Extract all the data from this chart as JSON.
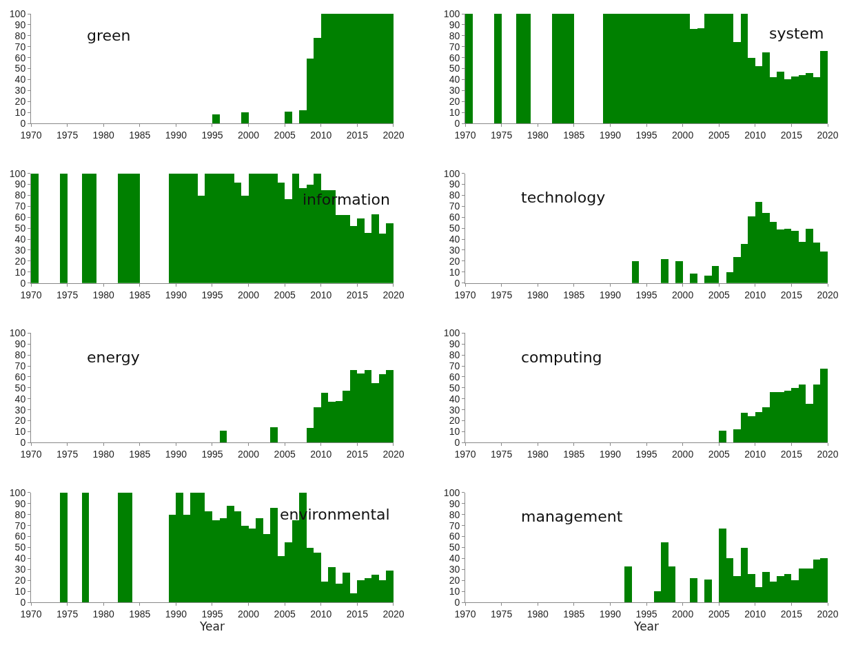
{
  "chart_data": [
    {
      "type": "histogram",
      "annotations": [
        "green"
      ],
      "color": "#008000",
      "xlim": [
        1970,
        2020
      ],
      "ylim": [
        0,
        100
      ],
      "xticks": [
        1970,
        1975,
        1980,
        1985,
        1990,
        1995,
        2000,
        2005,
        2010,
        2015,
        2020
      ],
      "yticks": [
        0,
        10,
        20,
        30,
        40,
        50,
        60,
        70,
        80,
        90,
        100
      ],
      "bins": [
        1970,
        1971,
        1972,
        1973,
        1974,
        1975,
        1976,
        1977,
        1978,
        1979,
        1980,
        1981,
        1982,
        1983,
        1984,
        1985,
        1986,
        1987,
        1988,
        1989,
        1990,
        1991,
        1992,
        1993,
        1994,
        1995,
        1996,
        1997,
        1998,
        1999,
        2000,
        2001,
        2002,
        2003,
        2004,
        2005,
        2006,
        2007,
        2008,
        2009,
        2010,
        2011,
        2012,
        2013,
        2014,
        2015,
        2016,
        2017,
        2018,
        2019,
        2020
      ],
      "values": [
        0,
        0,
        0,
        0,
        0,
        0,
        0,
        0,
        0,
        0,
        0,
        0,
        0,
        0,
        0,
        0,
        0,
        0,
        0,
        0,
        0,
        0,
        0,
        0,
        0,
        8,
        0,
        0,
        0,
        10,
        0,
        0,
        0,
        0,
        0,
        11,
        0,
        12,
        59,
        78,
        100,
        100,
        100,
        100,
        100,
        100,
        100,
        100,
        100,
        100
      ]
    },
    {
      "type": "histogram",
      "annotations": [
        "system"
      ],
      "color": "#008000",
      "xlim": [
        1970,
        2020
      ],
      "ylim": [
        0,
        100
      ],
      "xticks": [
        1970,
        1975,
        1980,
        1985,
        1990,
        1995,
        2000,
        2005,
        2010,
        2015,
        2020
      ],
      "yticks": [
        0,
        10,
        20,
        30,
        40,
        50,
        60,
        70,
        80,
        90,
        100
      ],
      "bins": [
        1970,
        1971,
        1972,
        1973,
        1974,
        1975,
        1976,
        1977,
        1978,
        1979,
        1980,
        1981,
        1982,
        1983,
        1984,
        1985,
        1986,
        1987,
        1988,
        1989,
        1990,
        1991,
        1992,
        1993,
        1994,
        1995,
        1996,
        1997,
        1998,
        1999,
        2000,
        2001,
        2002,
        2003,
        2004,
        2005,
        2006,
        2007,
        2008,
        2009,
        2010,
        2011,
        2012,
        2013,
        2014,
        2015,
        2016,
        2017,
        2018,
        2019,
        2020
      ],
      "values": [
        100,
        0,
        0,
        0,
        100,
        0,
        0,
        100,
        100,
        0,
        0,
        0,
        100,
        100,
        100,
        0,
        0,
        0,
        0,
        100,
        100,
        100,
        100,
        100,
        100,
        100,
        100,
        100,
        100,
        100,
        100,
        86,
        87,
        100,
        100,
        100,
        100,
        74,
        100,
        60,
        52,
        65,
        42,
        47,
        40,
        43,
        44,
        46,
        42,
        66
      ]
    },
    {
      "type": "histogram",
      "annotations": [
        "information"
      ],
      "color": "#008000",
      "xlim": [
        1970,
        2020
      ],
      "ylim": [
        0,
        100
      ],
      "xticks": [
        1970,
        1975,
        1980,
        1985,
        1990,
        1995,
        2000,
        2005,
        2010,
        2015,
        2020
      ],
      "yticks": [
        0,
        10,
        20,
        30,
        40,
        50,
        60,
        70,
        80,
        90,
        100
      ],
      "bins": [
        1970,
        1971,
        1972,
        1973,
        1974,
        1975,
        1976,
        1977,
        1978,
        1979,
        1980,
        1981,
        1982,
        1983,
        1984,
        1985,
        1986,
        1987,
        1988,
        1989,
        1990,
        1991,
        1992,
        1993,
        1994,
        1995,
        1996,
        1997,
        1998,
        1999,
        2000,
        2001,
        2002,
        2003,
        2004,
        2005,
        2006,
        2007,
        2008,
        2009,
        2010,
        2011,
        2012,
        2013,
        2014,
        2015,
        2016,
        2017,
        2018,
        2019,
        2020
      ],
      "values": [
        100,
        0,
        0,
        0,
        100,
        0,
        0,
        100,
        100,
        0,
        0,
        0,
        100,
        100,
        100,
        0,
        0,
        0,
        0,
        100,
        100,
        100,
        100,
        80,
        100,
        100,
        100,
        100,
        92,
        80,
        100,
        100,
        100,
        100,
        92,
        77,
        100,
        87,
        90,
        100,
        85,
        85,
        62,
        62,
        52,
        59,
        46,
        63,
        45,
        55
      ]
    },
    {
      "type": "histogram",
      "annotations": [
        "technology"
      ],
      "color": "#008000",
      "xlim": [
        1970,
        2020
      ],
      "ylim": [
        0,
        100
      ],
      "xticks": [
        1970,
        1975,
        1980,
        1985,
        1990,
        1995,
        2000,
        2005,
        2010,
        2015,
        2020
      ],
      "yticks": [
        0,
        10,
        20,
        30,
        40,
        50,
        60,
        70,
        80,
        90,
        100
      ],
      "bins": [
        1970,
        1971,
        1972,
        1973,
        1974,
        1975,
        1976,
        1977,
        1978,
        1979,
        1980,
        1981,
        1982,
        1983,
        1984,
        1985,
        1986,
        1987,
        1988,
        1989,
        1990,
        1991,
        1992,
        1993,
        1994,
        1995,
        1996,
        1997,
        1998,
        1999,
        2000,
        2001,
        2002,
        2003,
        2004,
        2005,
        2006,
        2007,
        2008,
        2009,
        2010,
        2011,
        2012,
        2013,
        2014,
        2015,
        2016,
        2017,
        2018,
        2019,
        2020
      ],
      "values": [
        0,
        0,
        0,
        0,
        0,
        0,
        0,
        0,
        0,
        0,
        0,
        0,
        0,
        0,
        0,
        0,
        0,
        0,
        0,
        0,
        0,
        0,
        0,
        20,
        0,
        0,
        0,
        22,
        0,
        20,
        0,
        9,
        0,
        7,
        16,
        0,
        10,
        24,
        36,
        61,
        74,
        64,
        56,
        49,
        50,
        48,
        38,
        50,
        37,
        29
      ]
    },
    {
      "type": "histogram",
      "annotations": [
        "energy"
      ],
      "color": "#008000",
      "xlim": [
        1970,
        2020
      ],
      "ylim": [
        0,
        100
      ],
      "xticks": [
        1970,
        1975,
        1980,
        1985,
        1990,
        1995,
        2000,
        2005,
        2010,
        2015,
        2020
      ],
      "yticks": [
        0,
        10,
        20,
        30,
        40,
        50,
        60,
        70,
        80,
        90,
        100
      ],
      "bins": [
        1970,
        1971,
        1972,
        1973,
        1974,
        1975,
        1976,
        1977,
        1978,
        1979,
        1980,
        1981,
        1982,
        1983,
        1984,
        1985,
        1986,
        1987,
        1988,
        1989,
        1990,
        1991,
        1992,
        1993,
        1994,
        1995,
        1996,
        1997,
        1998,
        1999,
        2000,
        2001,
        2002,
        2003,
        2004,
        2005,
        2006,
        2007,
        2008,
        2009,
        2010,
        2011,
        2012,
        2013,
        2014,
        2015,
        2016,
        2017,
        2018,
        2019,
        2020
      ],
      "values": [
        0,
        0,
        0,
        0,
        0,
        0,
        0,
        0,
        0,
        0,
        0,
        0,
        0,
        0,
        0,
        0,
        0,
        0,
        0,
        0,
        0,
        0,
        0,
        0,
        0,
        0,
        11,
        0,
        0,
        0,
        0,
        0,
        0,
        14,
        0,
        0,
        0,
        0,
        13,
        32,
        45,
        37,
        38,
        47,
        66,
        63,
        66,
        54,
        62,
        66
      ]
    },
    {
      "type": "histogram",
      "annotations": [
        "computing"
      ],
      "color": "#008000",
      "xlim": [
        1970,
        2020
      ],
      "ylim": [
        0,
        100
      ],
      "xticks": [
        1970,
        1975,
        1980,
        1985,
        1990,
        1995,
        2000,
        2005,
        2010,
        2015,
        2020
      ],
      "yticks": [
        0,
        10,
        20,
        30,
        40,
        50,
        60,
        70,
        80,
        90,
        100
      ],
      "bins": [
        1970,
        1971,
        1972,
        1973,
        1974,
        1975,
        1976,
        1977,
        1978,
        1979,
        1980,
        1981,
        1982,
        1983,
        1984,
        1985,
        1986,
        1987,
        1988,
        1989,
        1990,
        1991,
        1992,
        1993,
        1994,
        1995,
        1996,
        1997,
        1998,
        1999,
        2000,
        2001,
        2002,
        2003,
        2004,
        2005,
        2006,
        2007,
        2008,
        2009,
        2010,
        2011,
        2012,
        2013,
        2014,
        2015,
        2016,
        2017,
        2018,
        2019,
        2020
      ],
      "values": [
        0,
        0,
        0,
        0,
        0,
        0,
        0,
        0,
        0,
        0,
        0,
        0,
        0,
        0,
        0,
        0,
        0,
        0,
        0,
        0,
        0,
        0,
        0,
        0,
        0,
        0,
        0,
        0,
        0,
        0,
        0,
        0,
        0,
        0,
        0,
        11,
        0,
        12,
        27,
        24,
        28,
        32,
        46,
        46,
        47,
        50,
        53,
        35,
        53,
        67
      ]
    },
    {
      "type": "histogram",
      "annotations": [
        "environmental"
      ],
      "xlabel": "Year",
      "color": "#008000",
      "xlim": [
        1970,
        2020
      ],
      "ylim": [
        0,
        100
      ],
      "xticks": [
        1970,
        1975,
        1980,
        1985,
        1990,
        1995,
        2000,
        2005,
        2010,
        2015,
        2020
      ],
      "yticks": [
        0,
        10,
        20,
        30,
        40,
        50,
        60,
        70,
        80,
        90,
        100
      ],
      "bins": [
        1970,
        1971,
        1972,
        1973,
        1974,
        1975,
        1976,
        1977,
        1978,
        1979,
        1980,
        1981,
        1982,
        1983,
        1984,
        1985,
        1986,
        1987,
        1988,
        1989,
        1990,
        1991,
        1992,
        1993,
        1994,
        1995,
        1996,
        1997,
        1998,
        1999,
        2000,
        2001,
        2002,
        2003,
        2004,
        2005,
        2006,
        2007,
        2008,
        2009,
        2010,
        2011,
        2012,
        2013,
        2014,
        2015,
        2016,
        2017,
        2018,
        2019,
        2020
      ],
      "values": [
        0,
        0,
        0,
        0,
        100,
        0,
        0,
        100,
        0,
        0,
        0,
        0,
        100,
        100,
        0,
        0,
        0,
        0,
        0,
        80,
        100,
        80,
        100,
        100,
        83,
        75,
        77,
        88,
        83,
        70,
        67,
        77,
        62,
        86,
        42,
        55,
        75,
        100,
        50,
        45,
        19,
        32,
        17,
        27,
        8,
        20,
        22,
        25,
        20,
        29
      ]
    },
    {
      "type": "histogram",
      "annotations": [
        "management"
      ],
      "xlabel": "Year",
      "color": "#008000",
      "xlim": [
        1970,
        2020
      ],
      "ylim": [
        0,
        100
      ],
      "xticks": [
        1970,
        1975,
        1980,
        1985,
        1990,
        1995,
        2000,
        2005,
        2010,
        2015,
        2020
      ],
      "yticks": [
        0,
        10,
        20,
        30,
        40,
        50,
        60,
        70,
        80,
        90,
        100
      ],
      "bins": [
        1970,
        1971,
        1972,
        1973,
        1974,
        1975,
        1976,
        1977,
        1978,
        1979,
        1980,
        1981,
        1982,
        1983,
        1984,
        1985,
        1986,
        1987,
        1988,
        1989,
        1990,
        1991,
        1992,
        1993,
        1994,
        1995,
        1996,
        1997,
        1998,
        1999,
        2000,
        2001,
        2002,
        2003,
        2004,
        2005,
        2006,
        2007,
        2008,
        2009,
        2010,
        2011,
        2012,
        2013,
        2014,
        2015,
        2016,
        2017,
        2018,
        2019,
        2020
      ],
      "values": [
        0,
        0,
        0,
        0,
        0,
        0,
        0,
        0,
        0,
        0,
        0,
        0,
        0,
        0,
        0,
        0,
        0,
        0,
        0,
        0,
        0,
        0,
        33,
        0,
        0,
        0,
        10,
        55,
        33,
        0,
        0,
        22,
        0,
        21,
        0,
        67,
        40,
        24,
        50,
        26,
        14,
        28,
        19,
        24,
        26,
        20,
        31,
        31,
        39,
        40
      ]
    }
  ]
}
